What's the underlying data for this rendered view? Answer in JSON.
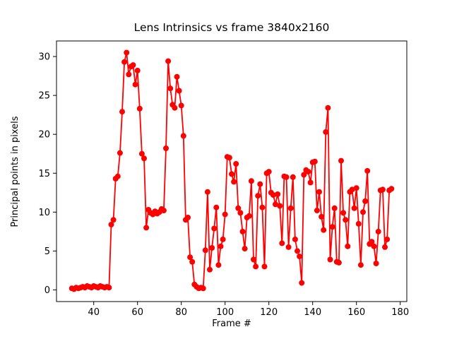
{
  "chart_data": {
    "type": "line",
    "title": "Lens Intrinsics vs frame 3840x2160",
    "xlabel": "Frame #",
    "ylabel": "Principal points in pixels",
    "xlim": [
      23,
      183
    ],
    "ylim": [
      -1.5,
      32
    ],
    "xticks": [
      40,
      60,
      80,
      100,
      120,
      140,
      160,
      180
    ],
    "yticks": [
      0,
      5,
      10,
      15,
      20,
      25,
      30
    ],
    "grid": false,
    "legend": "none",
    "marker": "circle",
    "series": [
      {
        "name": "principal-points",
        "color": "#ff0000",
        "points": [
          [
            30,
            0.2
          ],
          [
            31,
            0.1
          ],
          [
            32,
            0.3
          ],
          [
            33,
            0.2
          ],
          [
            34,
            0.3
          ],
          [
            35,
            0.4
          ],
          [
            36,
            0.3
          ],
          [
            37,
            0.5
          ],
          [
            38,
            0.4
          ],
          [
            39,
            0.3
          ],
          [
            40,
            0.5
          ],
          [
            41,
            0.4
          ],
          [
            42,
            0.3
          ],
          [
            43,
            0.5
          ],
          [
            44,
            0.4
          ],
          [
            45,
            0.3
          ],
          [
            46,
            0.4
          ],
          [
            47,
            0.3
          ],
          [
            48,
            8.4
          ],
          [
            49,
            9.0
          ],
          [
            50,
            14.3
          ],
          [
            51,
            14.6
          ],
          [
            52,
            17.6
          ],
          [
            53,
            22.9
          ],
          [
            54,
            29.3
          ],
          [
            55,
            30.5
          ],
          [
            56,
            27.7
          ],
          [
            57,
            28.7
          ],
          [
            58,
            28.9
          ],
          [
            59,
            26.4
          ],
          [
            60,
            28.2
          ],
          [
            61,
            23.3
          ],
          [
            62,
            17.5
          ],
          [
            63,
            16.9
          ],
          [
            64,
            8.0
          ],
          [
            65,
            10.3
          ],
          [
            66,
            9.9
          ],
          [
            67,
            9.7
          ],
          [
            68,
            10.1
          ],
          [
            69,
            9.8
          ],
          [
            70,
            10.0
          ],
          [
            71,
            10.4
          ],
          [
            72,
            10.2
          ],
          [
            73,
            18.2
          ],
          [
            74,
            29.4
          ],
          [
            75,
            25.9
          ],
          [
            76,
            23.8
          ],
          [
            77,
            23.4
          ],
          [
            78,
            27.4
          ],
          [
            79,
            25.6
          ],
          [
            80,
            23.7
          ],
          [
            81,
            19.8
          ],
          [
            82,
            9.0
          ],
          [
            83,
            9.3
          ],
          [
            84,
            4.2
          ],
          [
            85,
            3.6
          ],
          [
            86,
            0.7
          ],
          [
            87,
            0.4
          ],
          [
            88,
            0.2
          ],
          [
            89,
            0.3
          ],
          [
            90,
            0.2
          ],
          [
            91,
            5.1
          ],
          [
            92,
            12.6
          ],
          [
            93,
            2.6
          ],
          [
            94,
            5.4
          ],
          [
            95,
            7.9
          ],
          [
            96,
            10.6
          ],
          [
            97,
            3.2
          ],
          [
            98,
            5.6
          ],
          [
            99,
            6.5
          ],
          [
            100,
            9.7
          ],
          [
            101,
            17.1
          ],
          [
            102,
            17.0
          ],
          [
            103,
            14.9
          ],
          [
            104,
            13.9
          ],
          [
            105,
            16.2
          ],
          [
            106,
            10.5
          ],
          [
            107,
            9.9
          ],
          [
            108,
            7.5
          ],
          [
            109,
            5.3
          ],
          [
            110,
            9.3
          ],
          [
            111,
            9.5
          ],
          [
            112,
            14.0
          ],
          [
            113,
            3.9
          ],
          [
            114,
            3.0
          ],
          [
            115,
            12.1
          ],
          [
            116,
            13.6
          ],
          [
            117,
            10.6
          ],
          [
            118,
            3.0
          ],
          [
            119,
            15.0
          ],
          [
            120,
            15.2
          ],
          [
            121,
            12.5
          ],
          [
            122,
            12.2
          ],
          [
            123,
            11.0
          ],
          [
            124,
            12.3
          ],
          [
            125,
            10.8
          ],
          [
            126,
            6.0
          ],
          [
            127,
            14.6
          ],
          [
            128,
            14.5
          ],
          [
            129,
            5.5
          ],
          [
            130,
            10.5
          ],
          [
            131,
            14.5
          ],
          [
            132,
            6.5
          ],
          [
            133,
            5.0
          ],
          [
            134,
            4.3
          ],
          [
            135,
            0.9
          ],
          [
            136,
            14.8
          ],
          [
            137,
            15.4
          ],
          [
            138,
            15.2
          ],
          [
            139,
            13.8
          ],
          [
            140,
            16.4
          ],
          [
            141,
            16.5
          ],
          [
            142,
            10.2
          ],
          [
            143,
            12.6
          ],
          [
            144,
            9.4
          ],
          [
            145,
            7.7
          ],
          [
            146,
            20.3
          ],
          [
            147,
            23.4
          ],
          [
            148,
            3.9
          ],
          [
            149,
            8.1
          ],
          [
            150,
            10.5
          ],
          [
            151,
            3.6
          ],
          [
            152,
            3.5
          ],
          [
            153,
            16.6
          ],
          [
            154,
            9.9
          ],
          [
            155,
            9.0
          ],
          [
            156,
            5.6
          ],
          [
            157,
            12.6
          ],
          [
            158,
            12.9
          ],
          [
            159,
            10.5
          ],
          [
            160,
            13.1
          ],
          [
            161,
            8.5
          ],
          [
            162,
            3.2
          ],
          [
            163,
            10.0
          ],
          [
            164,
            11.4
          ],
          [
            165,
            15.3
          ],
          [
            166,
            5.9
          ],
          [
            167,
            6.2
          ],
          [
            168,
            5.6
          ],
          [
            169,
            3.4
          ],
          [
            170,
            7.5
          ],
          [
            171,
            12.8
          ],
          [
            172,
            12.9
          ],
          [
            173,
            5.5
          ],
          [
            174,
            6.5
          ],
          [
            175,
            12.8
          ],
          [
            176,
            13.0
          ]
        ]
      }
    ]
  }
}
